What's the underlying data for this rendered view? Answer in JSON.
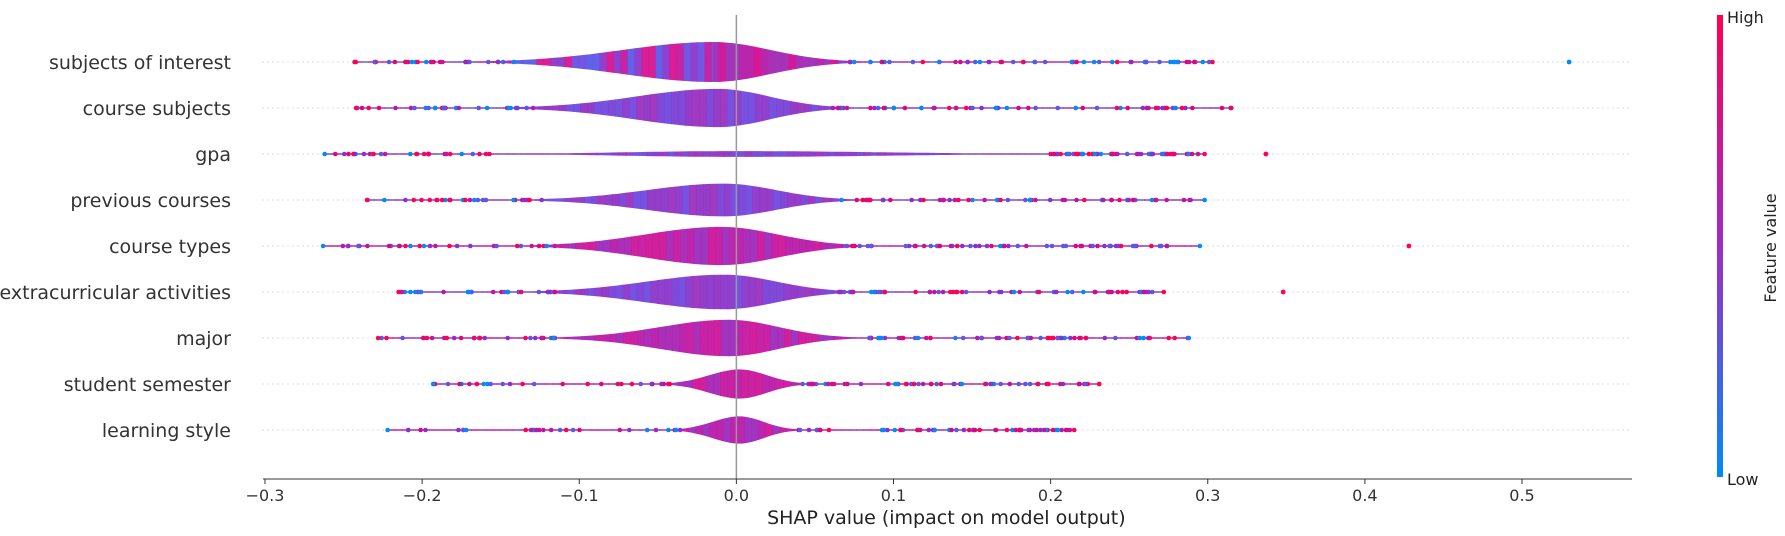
{
  "chart_data": {
    "type": "violin-summary",
    "title": "",
    "xlabel": "SHAP value (impact on model output)",
    "xlim": [
      -0.3,
      0.57
    ],
    "x_ticks": [
      -0.3,
      -0.2,
      -0.1,
      0.0,
      0.1,
      0.2,
      0.3,
      0.4,
      0.5
    ],
    "x_tick_labels": [
      "−0.3",
      "−0.2",
      "−0.1",
      "0.0",
      "0.1",
      "0.2",
      "0.3",
      "0.4",
      "0.5"
    ],
    "colorbar": {
      "label": "Feature value",
      "high_label": "High",
      "low_label": "Low",
      "high_color": "#ff0052",
      "low_color": "#008bfb"
    },
    "features": [
      {
        "name": "subjects of interest",
        "min": -0.243,
        "max": 0.303,
        "outliers": [
          0.53
        ],
        "peak_width": 1.0,
        "body": [
          -0.14,
          0.065
        ],
        "center": -0.015,
        "body_tint": "mixed"
      },
      {
        "name": "course subjects",
        "min": -0.242,
        "max": 0.315,
        "outliers": [],
        "peak_width": 0.95,
        "body": [
          -0.125,
          0.06
        ],
        "center": -0.012,
        "body_tint": "purple"
      },
      {
        "name": "gpa",
        "min": -0.262,
        "max": 0.298,
        "outliers": [
          0.337
        ],
        "peak_width": 0.05,
        "body": [
          -0.15,
          0.2
        ],
        "center": 0.0,
        "body_tint": "purple"
      },
      {
        "name": "previous courses",
        "min": -0.235,
        "max": 0.298,
        "outliers": [],
        "peak_width": 0.8,
        "body": [
          -0.115,
          0.065
        ],
        "center": -0.008,
        "body_tint": "purple"
      },
      {
        "name": "course types",
        "min": -0.263,
        "max": 0.295,
        "outliers": [
          0.428
        ],
        "peak_width": 0.95,
        "body": [
          -0.115,
          0.07
        ],
        "center": -0.01,
        "body_tint": "magenta"
      },
      {
        "name": "extracurricular activities",
        "min": -0.215,
        "max": 0.272,
        "outliers": [
          0.348
        ],
        "peak_width": 0.85,
        "body": [
          -0.115,
          0.065
        ],
        "center": -0.008,
        "body_tint": "purple"
      },
      {
        "name": "major",
        "min": -0.228,
        "max": 0.288,
        "outliers": [],
        "peak_width": 0.9,
        "body": [
          -0.1,
          0.065
        ],
        "center": -0.005,
        "body_tint": "magenta"
      },
      {
        "name": "student semester",
        "min": -0.193,
        "max": 0.231,
        "outliers": [],
        "peak_width": 0.7,
        "body": [
          -0.04,
          0.04
        ],
        "center": 0.002,
        "body_tint": "magenta"
      },
      {
        "name": "learning style",
        "min": -0.222,
        "max": 0.215,
        "outliers": [],
        "peak_width": 0.65,
        "body": [
          -0.035,
          0.035
        ],
        "center": 0.002,
        "body_tint": "magenta"
      }
    ]
  }
}
